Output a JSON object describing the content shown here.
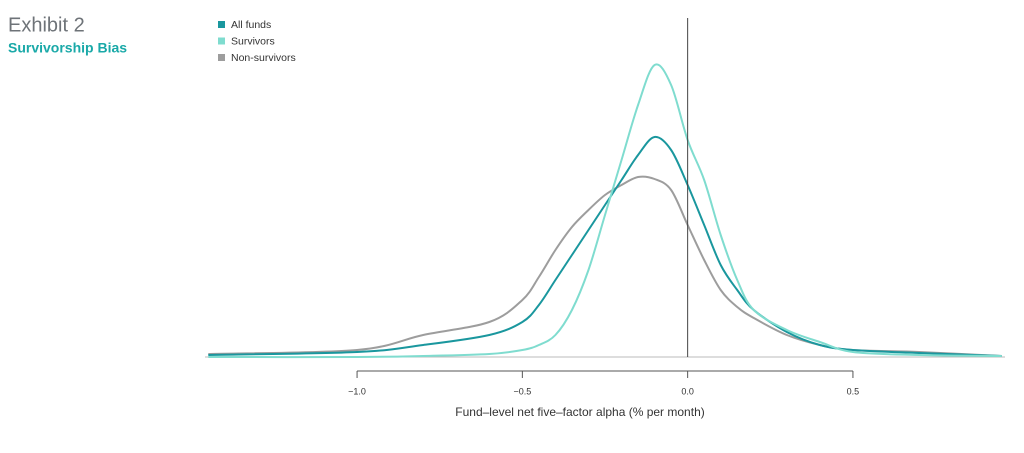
{
  "chart_data": {
    "type": "line",
    "title": "Exhibit 2",
    "subtitle": "Survivorship Bias",
    "x_label": "Fund–level net five–factor alpha (% per month)",
    "x": [
      -1.45,
      -1.0,
      -0.8,
      -0.6,
      -0.5,
      -0.45,
      -0.4,
      -0.35,
      -0.3,
      -0.25,
      -0.2,
      -0.15,
      -0.1,
      -0.05,
      0,
      0.05,
      0.1,
      0.15,
      0.2,
      0.3,
      0.4,
      0.5,
      0.7,
      0.95
    ],
    "series": [
      {
        "name": "All funds",
        "color": "#1a979e",
        "values": [
          0.02,
          0.05,
          0.12,
          0.22,
          0.35,
          0.52,
          0.77,
          1.02,
          1.27,
          1.52,
          1.77,
          2.02,
          2.2,
          2.07,
          1.72,
          1.32,
          0.92,
          0.67,
          0.47,
          0.25,
          0.12,
          0.07,
          0.04,
          0.01
        ]
      },
      {
        "name": "Survivors",
        "color": "#7fdccf",
        "values": [
          0,
          0,
          0.01,
          0.03,
          0.07,
          0.12,
          0.22,
          0.47,
          0.87,
          1.42,
          1.97,
          2.52,
          2.92,
          2.72,
          2.17,
          1.77,
          1.22,
          0.77,
          0.47,
          0.27,
          0.15,
          0.05,
          0.02,
          0.01
        ]
      },
      {
        "name": "Non-survivors",
        "color": "#9d9d9d",
        "values": [
          0.03,
          0.07,
          0.22,
          0.35,
          0.57,
          0.8,
          1.07,
          1.3,
          1.47,
          1.62,
          1.72,
          1.8,
          1.78,
          1.67,
          1.32,
          0.97,
          0.67,
          0.5,
          0.39,
          0.22,
          0.12,
          0.07,
          0.05,
          0.01
        ]
      }
    ],
    "xlim": [
      -1.46,
      0.96
    ],
    "xticks": [
      {
        "value": -1.0,
        "label": "−1.0"
      },
      {
        "value": -0.5,
        "label": "−0.5"
      },
      {
        "value": 0,
        "label": "0.0"
      },
      0.5
    ],
    "ylim": [
      0,
      3
    ],
    "reference_line_x": 0,
    "legend": "upper left"
  }
}
